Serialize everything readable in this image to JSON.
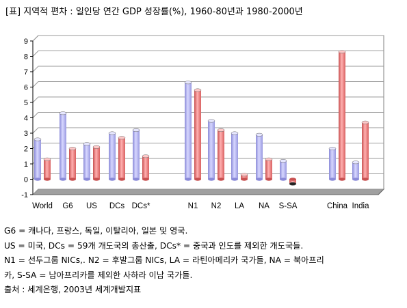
{
  "title": "[표] 지역적 편차 : 일인당 연간 GDP 성장률(%), 1960-80년과 1980-2000년",
  "chart_data": {
    "type": "bar",
    "title": "[표] 지역적 편차 : 일인당 연간 GDP 성장률(%), 1960-80년과 1980-2000년",
    "xlabel": "",
    "ylabel": "",
    "ylim": [
      -1,
      9
    ],
    "yticks": [
      "-1",
      "0",
      "1",
      "2",
      "3",
      "4",
      "5",
      "6",
      "7",
      "8",
      "9"
    ],
    "grid": true,
    "legend": "none",
    "categories": [
      "World",
      "G6",
      "US",
      "DCs",
      "DCs*",
      "N1",
      "N2",
      "LA",
      "NA",
      "S-SA",
      "China",
      "India"
    ],
    "series": [
      {
        "color": "#b3b3f0",
        "values": [
          2.6,
          4.3,
          2.3,
          3.0,
          3.2,
          6.3,
          3.8,
          3.0,
          2.9,
          1.2,
          2.0,
          1.1
        ]
      },
      {
        "color": "#f08080",
        "values": [
          1.3,
          2.0,
          2.1,
          2.7,
          1.5,
          5.8,
          3.2,
          0.3,
          1.3,
          -0.3,
          8.3,
          3.7
        ]
      }
    ]
  },
  "notes": [
    "G6 = 캐나다, 프랑스, 독일, 이탈리아, 일본 및 영국.",
    "US = 미국, DCs = 59개 개도국의 총산출, DCs* = 중국과 인도를 제외한 개도국들.",
    "N1 = 선두그룹 NICs,. N2 = 후발그룹 NICs, LA = 라틴아메리카 국가들, NA = 북아프리",
    "카, S-SA = 남아프리카를 제외한 사하라 이남 국가들.",
    "출처 : 세계은행, 2003년 세계개발지표"
  ]
}
